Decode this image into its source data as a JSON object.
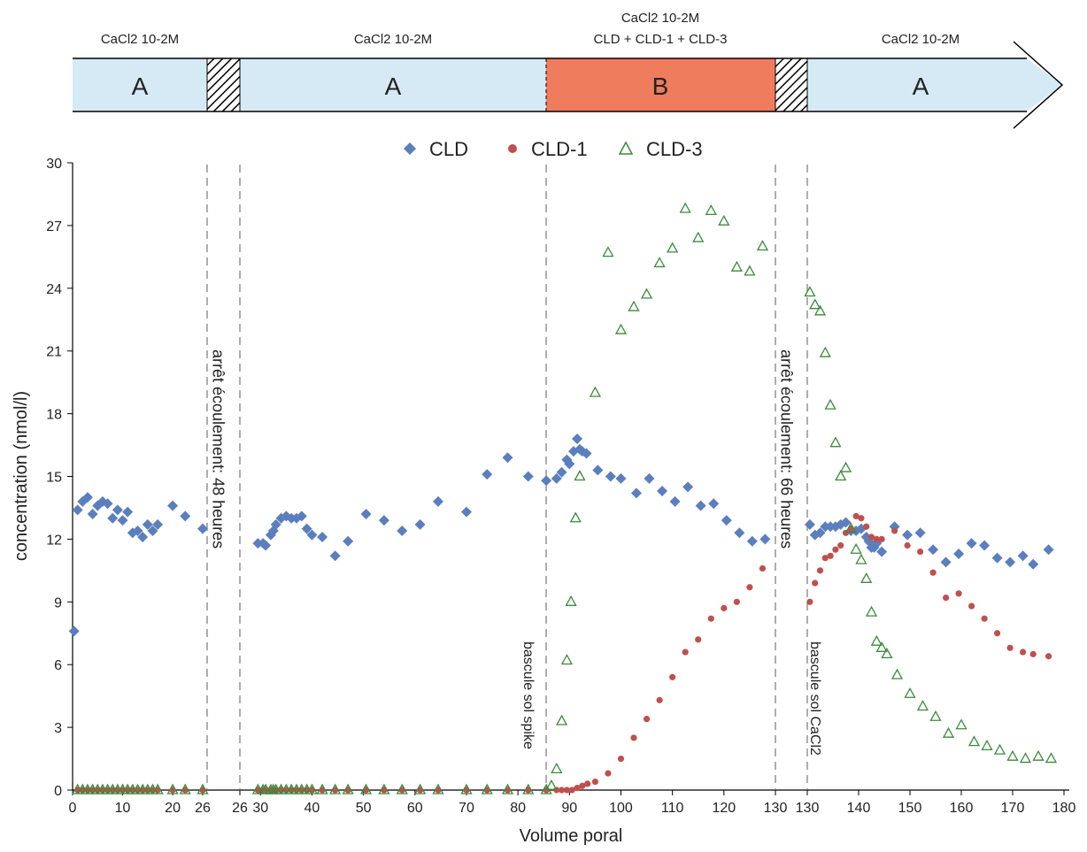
{
  "chart_data": {
    "type": "scatter",
    "title": "",
    "xlabel": "Volume poral",
    "ylabel": "concentration (nmol/l)",
    "ylim": [
      0,
      30
    ],
    "xlim": [
      0,
      180
    ],
    "x_axis_breaks_note": "piecewise axis with two breaks",
    "x_ticks": {
      "segment1": [
        "0",
        "10",
        "20",
        "26"
      ],
      "segment2": [
        "26",
        "30",
        "40",
        "50",
        "60",
        "70",
        "80",
        "90",
        "100",
        "110",
        "120",
        "130"
      ],
      "segment3": [
        "130",
        "140",
        "150",
        "160",
        "170",
        "180"
      ]
    },
    "y_ticks": [
      "0",
      "3",
      "6",
      "9",
      "12",
      "15",
      "18",
      "21",
      "24",
      "27",
      "30"
    ],
    "grid": false,
    "legend_position": "top",
    "series": [
      {
        "name": "CLD",
        "color": "#5b7fbe",
        "marker": "diamond",
        "points": [
          [
            0.3,
            7.6
          ],
          [
            1,
            13.4
          ],
          [
            2,
            13.8
          ],
          [
            3,
            14
          ],
          [
            4,
            13.2
          ],
          [
            5,
            13.6
          ],
          [
            6,
            13.8
          ],
          [
            7,
            13.7
          ],
          [
            8,
            13
          ],
          [
            9,
            13.4
          ],
          [
            10,
            12.9
          ],
          [
            11,
            13.3
          ],
          [
            12,
            12.3
          ],
          [
            13,
            12.4
          ],
          [
            14,
            12.1
          ],
          [
            15,
            12.7
          ],
          [
            16,
            12.4
          ],
          [
            17,
            12.7
          ],
          [
            20,
            13.6
          ],
          [
            22.5,
            13.1
          ],
          [
            26,
            12.5
          ],
          [
            29.5,
            11.8
          ],
          [
            30.5,
            11.8
          ],
          [
            31,
            11.7
          ],
          [
            32,
            12.2
          ],
          [
            32.5,
            12.4
          ],
          [
            33,
            12.7
          ],
          [
            34,
            13
          ],
          [
            35,
            13.1
          ],
          [
            36,
            13
          ],
          [
            37,
            13
          ],
          [
            38,
            13.1
          ],
          [
            39,
            12.5
          ],
          [
            40,
            12.2
          ],
          [
            42,
            12.1
          ],
          [
            44.5,
            11.2
          ],
          [
            47,
            11.9
          ],
          [
            50.5,
            13.2
          ],
          [
            54,
            12.9
          ],
          [
            57.5,
            12.4
          ],
          [
            61,
            12.7
          ],
          [
            64.5,
            13.8
          ],
          [
            70,
            13.3
          ],
          [
            74,
            15.1
          ],
          [
            78,
            15.9
          ],
          [
            82,
            15
          ],
          [
            85.5,
            14.8
          ],
          [
            87.5,
            14.9
          ],
          [
            88.5,
            15.2
          ],
          [
            89.5,
            15.8
          ],
          [
            90,
            15.6
          ],
          [
            90.8,
            16.2
          ],
          [
            91.5,
            16.8
          ],
          [
            92,
            16.3
          ],
          [
            92.5,
            16.2
          ],
          [
            93.3,
            16.1
          ],
          [
            95.5,
            15.3
          ],
          [
            98,
            15
          ],
          [
            100,
            14.9
          ],
          [
            103,
            14.2
          ],
          [
            105.5,
            14.9
          ],
          [
            108,
            14.3
          ],
          [
            110.5,
            13.8
          ],
          [
            113,
            14.5
          ],
          [
            115.5,
            13.6
          ],
          [
            118,
            13.7
          ],
          [
            120.5,
            12.9
          ],
          [
            123,
            12.3
          ],
          [
            125.5,
            11.9
          ],
          [
            128,
            12
          ],
          [
            130.5,
            12.7
          ],
          [
            131.5,
            12.2
          ],
          [
            132.5,
            12.3
          ],
          [
            133.5,
            12.6
          ],
          [
            134.5,
            12.6
          ],
          [
            135.5,
            12.6
          ],
          [
            136.5,
            12.7
          ],
          [
            137.5,
            12.8
          ],
          [
            138.5,
            12.4
          ],
          [
            139.5,
            12.4
          ],
          [
            140.5,
            12.5
          ],
          [
            141.5,
            12.1
          ],
          [
            142,
            11.9
          ],
          [
            142.5,
            11.6
          ],
          [
            143,
            11.6
          ],
          [
            143.5,
            11.8
          ],
          [
            144.5,
            11.4
          ],
          [
            147,
            12.6
          ],
          [
            149.5,
            12.2
          ],
          [
            152,
            12.3
          ],
          [
            154.5,
            11.5
          ],
          [
            157,
            10.9
          ],
          [
            159.5,
            11.3
          ],
          [
            162,
            11.8
          ],
          [
            164.5,
            11.7
          ],
          [
            167,
            11.1
          ],
          [
            169.5,
            10.9
          ],
          [
            172,
            11.2
          ],
          [
            174,
            10.8
          ],
          [
            177,
            11.5
          ]
        ]
      },
      {
        "name": "CLD-1",
        "color": "#c0504d",
        "marker": "circle",
        "points": [
          [
            1,
            0
          ],
          [
            2,
            0
          ],
          [
            3,
            0
          ],
          [
            4,
            0
          ],
          [
            5,
            0
          ],
          [
            6,
            0
          ],
          [
            7,
            0
          ],
          [
            8,
            0
          ],
          [
            9,
            0
          ],
          [
            10,
            0
          ],
          [
            11,
            0
          ],
          [
            12,
            0
          ],
          [
            13,
            0
          ],
          [
            14,
            0
          ],
          [
            15,
            0
          ],
          [
            16,
            0
          ],
          [
            17,
            0
          ],
          [
            20,
            0
          ],
          [
            22.5,
            0
          ],
          [
            26,
            0
          ],
          [
            29.5,
            0
          ],
          [
            30.5,
            0
          ],
          [
            31,
            0
          ],
          [
            32,
            0
          ],
          [
            32.5,
            0
          ],
          [
            33,
            0
          ],
          [
            34,
            0
          ],
          [
            35,
            0
          ],
          [
            36,
            0
          ],
          [
            37,
            0
          ],
          [
            38,
            0
          ],
          [
            39,
            0
          ],
          [
            40,
            0
          ],
          [
            42,
            0
          ],
          [
            44.5,
            0
          ],
          [
            47,
            0
          ],
          [
            50.5,
            0
          ],
          [
            54,
            0
          ],
          [
            57.5,
            0
          ],
          [
            61,
            0
          ],
          [
            64.5,
            0
          ],
          [
            70,
            0
          ],
          [
            74,
            0
          ],
          [
            78,
            0
          ],
          [
            82,
            0
          ],
          [
            85.5,
            0
          ],
          [
            87.5,
            0
          ],
          [
            88.5,
            0
          ],
          [
            89.5,
            0
          ],
          [
            90.5,
            0
          ],
          [
            91.5,
            0.1
          ],
          [
            92.5,
            0.2
          ],
          [
            93.5,
            0.3
          ],
          [
            95,
            0.4
          ],
          [
            97.5,
            0.8
          ],
          [
            100,
            1.5
          ],
          [
            102.5,
            2.5
          ],
          [
            105,
            3.4
          ],
          [
            107.5,
            4.3
          ],
          [
            110,
            5.4
          ],
          [
            112.5,
            6.6
          ],
          [
            115,
            7.2
          ],
          [
            117.5,
            8.2
          ],
          [
            120,
            8.7
          ],
          [
            122.5,
            9
          ],
          [
            125,
            9.7
          ],
          [
            127.5,
            10.6
          ],
          [
            130.5,
            9
          ],
          [
            131.5,
            9.9
          ],
          [
            132.5,
            10.5
          ],
          [
            133.5,
            11.1
          ],
          [
            134.5,
            11.2
          ],
          [
            135.5,
            11.5
          ],
          [
            136.5,
            11.7
          ],
          [
            137.5,
            12.3
          ],
          [
            138.5,
            12.5
          ],
          [
            139.5,
            13.1
          ],
          [
            140.5,
            13
          ],
          [
            141.5,
            12.6
          ],
          [
            142.5,
            12.1
          ],
          [
            143.5,
            12
          ],
          [
            144.5,
            12
          ],
          [
            147,
            12.4
          ],
          [
            149.5,
            11.7
          ],
          [
            152,
            11.4
          ],
          [
            154.5,
            10.4
          ],
          [
            157,
            9.2
          ],
          [
            159.5,
            9.4
          ],
          [
            162,
            8.8
          ],
          [
            164.5,
            8.2
          ],
          [
            167,
            7.5
          ],
          [
            169.5,
            6.8
          ],
          [
            172,
            6.6
          ],
          [
            174,
            6.5
          ],
          [
            177,
            6.4
          ]
        ]
      },
      {
        "name": "CLD-3",
        "color": "#3a8a3a",
        "marker": "triangle",
        "points": [
          [
            1,
            0
          ],
          [
            2,
            0
          ],
          [
            3,
            0
          ],
          [
            4,
            0
          ],
          [
            5,
            0
          ],
          [
            6,
            0
          ],
          [
            7,
            0
          ],
          [
            8,
            0
          ],
          [
            9,
            0
          ],
          [
            10,
            0
          ],
          [
            11,
            0
          ],
          [
            12,
            0
          ],
          [
            13,
            0
          ],
          [
            14,
            0
          ],
          [
            15,
            0
          ],
          [
            16,
            0
          ],
          [
            17,
            0
          ],
          [
            20,
            0
          ],
          [
            22.5,
            0
          ],
          [
            26,
            0
          ],
          [
            29.5,
            0
          ],
          [
            30.5,
            0
          ],
          [
            31,
            0
          ],
          [
            32,
            0
          ],
          [
            32.5,
            0
          ],
          [
            33,
            0
          ],
          [
            34,
            0
          ],
          [
            35,
            0
          ],
          [
            36,
            0
          ],
          [
            37,
            0
          ],
          [
            38,
            0
          ],
          [
            39,
            0
          ],
          [
            40,
            0
          ],
          [
            42,
            0
          ],
          [
            44.5,
            0
          ],
          [
            47,
            0
          ],
          [
            50.5,
            0
          ],
          [
            54,
            0
          ],
          [
            57.5,
            0
          ],
          [
            61,
            0
          ],
          [
            64.5,
            0
          ],
          [
            70,
            0
          ],
          [
            74,
            0
          ],
          [
            78,
            0
          ],
          [
            82,
            0
          ],
          [
            85.5,
            0
          ],
          [
            86.5,
            0.2
          ],
          [
            87.5,
            1
          ],
          [
            88.5,
            3.3
          ],
          [
            89.5,
            6.2
          ],
          [
            90.3,
            9
          ],
          [
            91.2,
            13
          ],
          [
            92,
            15
          ],
          [
            95,
            19
          ],
          [
            97.5,
            25.7
          ],
          [
            100,
            22
          ],
          [
            102.5,
            23.1
          ],
          [
            105,
            23.7
          ],
          [
            107.5,
            25.2
          ],
          [
            110,
            25.9
          ],
          [
            112.5,
            27.8
          ],
          [
            115,
            26.4
          ],
          [
            117.5,
            27.7
          ],
          [
            120,
            27.2
          ],
          [
            122.5,
            25
          ],
          [
            125,
            24.8
          ],
          [
            127.5,
            26
          ],
          [
            130.5,
            23.8
          ],
          [
            131.5,
            23.2
          ],
          [
            132.5,
            22.9
          ],
          [
            133.5,
            20.9
          ],
          [
            134.5,
            18.4
          ],
          [
            135.5,
            16.6
          ],
          [
            136.5,
            15
          ],
          [
            137.5,
            15.4
          ],
          [
            138.5,
            12.5
          ],
          [
            139.5,
            11.5
          ],
          [
            140.5,
            11
          ],
          [
            141.5,
            10.1
          ],
          [
            142.5,
            8.5
          ],
          [
            143.5,
            7.1
          ],
          [
            144.5,
            6.8
          ],
          [
            145.5,
            6.5
          ],
          [
            147.5,
            5.5
          ],
          [
            150,
            4.6
          ],
          [
            152.5,
            4
          ],
          [
            155,
            3.5
          ],
          [
            157.5,
            2.7
          ],
          [
            160,
            3.1
          ],
          [
            162.5,
            2.3
          ],
          [
            165,
            2.1
          ],
          [
            167.5,
            1.9
          ],
          [
            170,
            1.6
          ],
          [
            172.5,
            1.5
          ],
          [
            175,
            1.6
          ],
          [
            177.5,
            1.5
          ]
        ]
      }
    ],
    "annotations": [
      {
        "text": "arrêt écoulement: 48 heures"
      },
      {
        "text": "bascule sol spike"
      },
      {
        "text": "arrêt écoulement: 66 heures"
      },
      {
        "text": "bascule sol CaCl2"
      }
    ],
    "timeline": {
      "segments": [
        {
          "label": "A",
          "top_label": "CaCl2 10-2M",
          "fill": "#d6eaf6"
        },
        {
          "label": "A",
          "top_label": "CaCl2 10-2M",
          "fill": "#d6eaf6"
        },
        {
          "label": "B",
          "top_label_line1": "CaCl2 10-2M",
          "top_label_line2": "CLD + CLD-1 + CLD-3",
          "fill": "#f07c5e"
        },
        {
          "label": "A",
          "top_label": "CaCl2 10-2M",
          "fill": "#d6eaf6"
        }
      ]
    }
  }
}
